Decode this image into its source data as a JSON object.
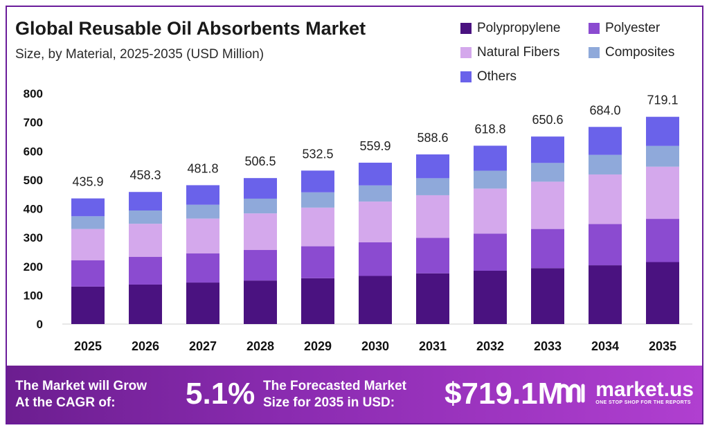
{
  "header": {
    "title": "Global Reusable Oil Absorbents Market",
    "subtitle": "Size, by Material, 2025-2035 (USD Million)"
  },
  "legend": [
    {
      "label": "Polypropylene",
      "color": "#4a1280"
    },
    {
      "label": "Polyester",
      "color": "#8b4bd0"
    },
    {
      "label": "Natural Fibers",
      "color": "#d4a8ec"
    },
    {
      "label": "Composites",
      "color": "#8fa9da"
    },
    {
      "label": "Others",
      "color": "#6a62ea"
    }
  ],
  "chart_data": {
    "type": "bar",
    "stacked": true,
    "categories": [
      "2025",
      "2026",
      "2027",
      "2028",
      "2029",
      "2030",
      "2031",
      "2032",
      "2033",
      "2034",
      "2035"
    ],
    "totals": [
      "435.9",
      "458.3",
      "481.8",
      "506.5",
      "532.5",
      "559.9",
      "588.6",
      "618.8",
      "650.6",
      "684.0",
      "719.1"
    ],
    "series": [
      {
        "name": "Polypropylene",
        "color": "#4a1280",
        "values": [
          130,
          137,
          144,
          151,
          159,
          167,
          176,
          185,
          194,
          204,
          215
        ]
      },
      {
        "name": "Polyester",
        "color": "#8b4bd0",
        "values": [
          91,
          96,
          101,
          106,
          111,
          117,
          123,
          129,
          136,
          143,
          150
        ]
      },
      {
        "name": "Natural Fibers",
        "color": "#d4a8ec",
        "values": [
          109,
          115,
          121,
          127,
          134,
          141,
          148,
          156,
          164,
          172,
          181
        ]
      },
      {
        "name": "Composites",
        "color": "#8fa9da",
        "values": [
          44,
          46,
          48,
          51,
          53,
          56,
          59,
          62,
          65,
          68,
          72
        ]
      },
      {
        "name": "Others",
        "color": "#6a62ea",
        "values": [
          61.9,
          64.3,
          67.8,
          71.5,
          75.5,
          78.9,
          82.6,
          86.8,
          91.6,
          97.0,
          101.1
        ]
      }
    ],
    "yticks": [
      "800",
      "700",
      "600",
      "500",
      "400",
      "300",
      "200",
      "100",
      "0"
    ],
    "ylim": [
      0,
      800
    ],
    "grid": false,
    "legend_position": "top-right"
  },
  "banner": {
    "cagr_text_line1": "The Market will Grow",
    "cagr_text_line2": "At the CAGR of:",
    "cagr_value": "5.1%",
    "forecast_text_line1": "The Forecasted Market",
    "forecast_text_line2": "Size for 2035 in USD:",
    "forecast_value": "$719.1M",
    "logo_name": "market.us",
    "logo_tagline": "ONE STOP SHOP FOR THE REPORTS"
  }
}
